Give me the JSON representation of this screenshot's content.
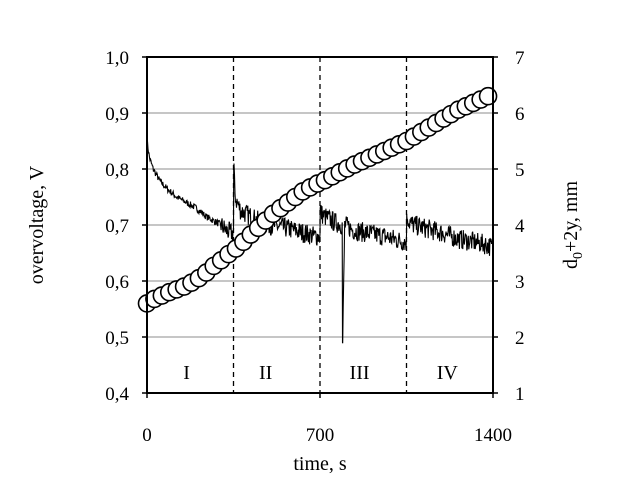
{
  "chart_data": {
    "type": "line",
    "title": "",
    "xlabel": "time, s",
    "ylabel_left": "overvoltage, V",
    "ylabel_right_main": "d",
    "ylabel_right_sub": "0",
    "ylabel_right_rest": "+2y, mm",
    "xlim": [
      0,
      1400
    ],
    "ylim_left": [
      0.4,
      1.0
    ],
    "ylim_right": [
      1,
      7
    ],
    "x_ticks": [
      0,
      700,
      1400
    ],
    "x_tick_labels": [
      "0",
      "700",
      "1400"
    ],
    "y_left_ticks": [
      0.4,
      0.5,
      0.6,
      0.7,
      0.8,
      0.9,
      1.0
    ],
    "y_left_tick_labels": [
      "0,4",
      "0,5",
      "0,6",
      "0,7",
      "0,8",
      "0,9",
      "1,0"
    ],
    "y_right_ticks": [
      1,
      2,
      3,
      4,
      5,
      6,
      7
    ],
    "y_right_tick_labels": [
      "1",
      "2",
      "3",
      "4",
      "5",
      "6",
      "7"
    ],
    "grid": "horizontal",
    "legend": "none",
    "region_boundaries": [
      350,
      700,
      1050
    ],
    "regions": [
      {
        "label": "I",
        "x": 160
      },
      {
        "label": "II",
        "x": 480
      },
      {
        "label": "III",
        "x": 860
      },
      {
        "label": "IV",
        "x": 1215
      }
    ],
    "series": [
      {
        "axis": "left",
        "style": "line",
        "color": "#000000",
        "x": [
          0,
          10,
          25,
          50,
          80,
          120,
          160,
          200,
          240,
          280,
          300,
          320,
          345,
          350,
          352,
          355,
          360,
          380,
          420,
          460,
          500,
          560,
          600,
          640,
          680,
          700,
          702,
          705,
          720,
          760,
          790,
          792,
          800,
          840,
          900,
          960,
          1000,
          1040,
          1050,
          1052,
          1060,
          1080,
          1120,
          1160,
          1200,
          1260,
          1320,
          1370,
          1400
        ],
        "values": [
          0.85,
          0.82,
          0.8,
          0.78,
          0.765,
          0.75,
          0.74,
          0.73,
          0.715,
          0.705,
          0.7,
          0.69,
          0.685,
          0.69,
          0.8,
          0.76,
          0.745,
          0.725,
          0.715,
          0.705,
          0.7,
          0.695,
          0.69,
          0.685,
          0.68,
          0.68,
          0.73,
          0.72,
          0.715,
          0.705,
          0.7,
          0.49,
          0.7,
          0.69,
          0.685,
          0.68,
          0.675,
          0.67,
          0.67,
          0.72,
          0.705,
          0.7,
          0.695,
          0.69,
          0.685,
          0.675,
          0.67,
          0.665,
          0.66
        ]
      },
      {
        "axis": "right",
        "style": "open-circle",
        "color": "#000000",
        "x": [
          0,
          30,
          60,
          90,
          120,
          150,
          180,
          210,
          240,
          270,
          300,
          330,
          360,
          390,
          420,
          450,
          480,
          510,
          540,
          570,
          600,
          630,
          660,
          690,
          720,
          750,
          780,
          810,
          840,
          870,
          900,
          930,
          960,
          990,
          1020,
          1050,
          1080,
          1110,
          1140,
          1170,
          1200,
          1230,
          1260,
          1290,
          1320,
          1350,
          1380
        ],
        "values": [
          2.6,
          2.68,
          2.74,
          2.8,
          2.85,
          2.9,
          2.97,
          3.05,
          3.15,
          3.27,
          3.37,
          3.48,
          3.58,
          3.7,
          3.83,
          3.95,
          4.08,
          4.2,
          4.3,
          4.4,
          4.5,
          4.6,
          4.67,
          4.74,
          4.8,
          4.87,
          4.94,
          5.01,
          5.08,
          5.14,
          5.2,
          5.26,
          5.32,
          5.38,
          5.44,
          5.5,
          5.58,
          5.66,
          5.74,
          5.82,
          5.9,
          5.98,
          6.06,
          6.12,
          6.18,
          6.24,
          6.3
        ]
      }
    ]
  }
}
